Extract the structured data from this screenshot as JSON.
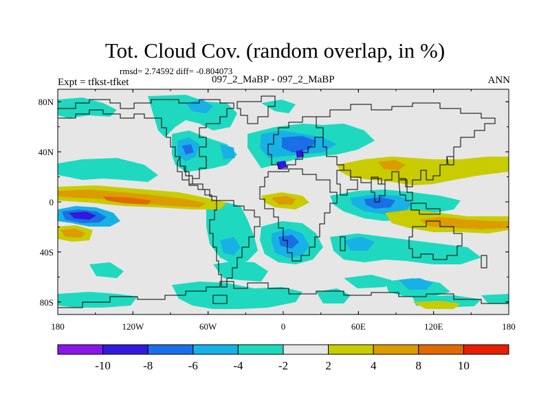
{
  "title": "Tot. Cloud Cov. (random overlap, in %)",
  "stats": "rmsd= 2.74592 diff= -0.804073",
  "expt": "Expt = tfkst-tfket",
  "center_label": "097_2_MaBP - 097_2_MaBP",
  "season": "ANN",
  "lon_ticks": [
    "180",
    "120W",
    "60W",
    "0",
    "60E",
    "120E",
    "180"
  ],
  "lat_ticks": [
    "80N",
    "40N",
    "0",
    "40S",
    "80S"
  ],
  "colorbar": {
    "colors": [
      "#8a16e8",
      "#3219dc",
      "#1b6fe6",
      "#17b1e6",
      "#1ed9bf",
      "#e6e6e6",
      "#c8cc00",
      "#dc9c00",
      "#e06a00",
      "#e81e00"
    ],
    "labels": [
      "-10",
      "-8",
      "-6",
      "-4",
      "-2",
      "2",
      "4",
      "8",
      "10"
    ]
  }
}
